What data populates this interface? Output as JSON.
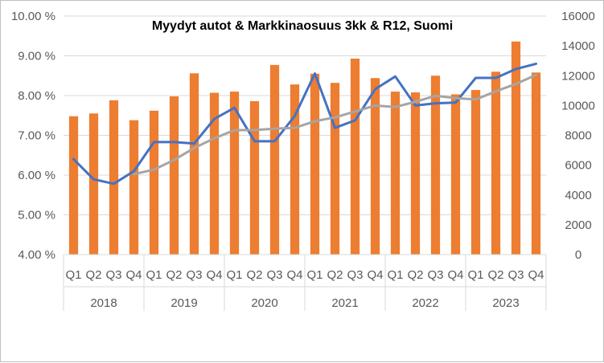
{
  "chart_data": {
    "type": "bar",
    "title": "Myydyt autot & Markkinaosuus 3kk & R12, Suomi",
    "quarters": [
      "Q1",
      "Q2",
      "Q3",
      "Q4",
      "Q1",
      "Q2",
      "Q3",
      "Q4",
      "Q1",
      "Q2",
      "Q3",
      "Q4",
      "Q1",
      "Q2",
      "Q3",
      "Q4",
      "Q1",
      "Q2",
      "Q3",
      "Q4",
      "Q1",
      "Q2",
      "Q3",
      "Q4"
    ],
    "years": [
      "2018",
      "2019",
      "2020",
      "2021",
      "2022",
      "2023"
    ],
    "y_left": {
      "min": 4.0,
      "max": 10.0,
      "step": 1.0,
      "tick_labels": [
        "4.00 %",
        "5.00 %",
        "6.00 %",
        "7.00 %",
        "8.00 %",
        "9.00 %",
        "10.00 %"
      ]
    },
    "y_right": {
      "min": 0,
      "max": 16000,
      "step": 2000,
      "tick_labels": [
        "0",
        "2000",
        "4000",
        "6000",
        "8000",
        "10000",
        "12000",
        "14000",
        "16000"
      ]
    },
    "grid": true,
    "legend": "none",
    "series": [
      {
        "kind": "bar",
        "axis": "left",
        "color": "#ed7d31",
        "values": [
          7.48,
          7.55,
          7.88,
          7.38,
          7.62,
          7.98,
          8.56,
          8.07,
          8.1,
          7.86,
          8.77,
          8.28,
          8.55,
          8.32,
          8.93,
          8.44,
          8.1,
          8.08,
          8.5,
          8.03,
          8.14,
          8.6,
          9.36,
          8.58
        ]
      },
      {
        "kind": "line",
        "axis": "right",
        "color": "#4472c4",
        "values": [
          6400,
          5050,
          4750,
          5600,
          7550,
          7550,
          7450,
          9100,
          9850,
          7600,
          7600,
          9300,
          12150,
          8500,
          9000,
          11100,
          11950,
          10000,
          10150,
          10200,
          11850,
          11850,
          12450,
          12800
        ]
      },
      {
        "kind": "line",
        "axis": "right",
        "color": "#a5a5a5",
        "values": [
          null,
          null,
          null,
          5400,
          5700,
          6350,
          7150,
          7800,
          8350,
          8350,
          8450,
          8500,
          8950,
          9200,
          9600,
          10000,
          9900,
          10250,
          10650,
          10500,
          10400,
          10950,
          11450,
          12050
        ]
      }
    ]
  }
}
